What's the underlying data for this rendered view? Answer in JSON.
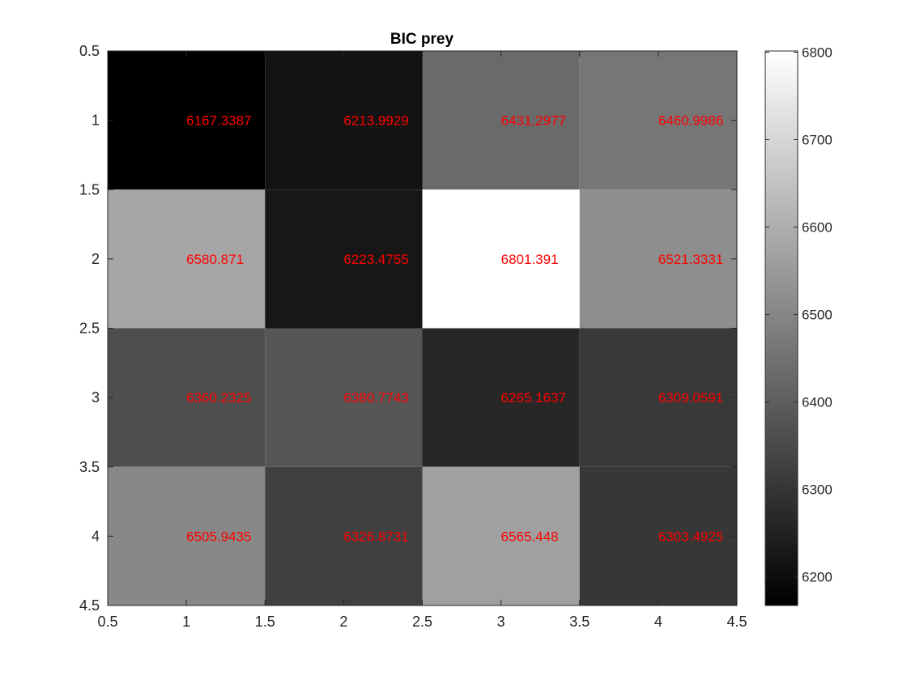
{
  "chart_data": {
    "type": "heatmap",
    "title": "BIC prey",
    "xlabel": "",
    "ylabel": "",
    "colormap": "gray",
    "clim": [
      6167.3387,
      6801.391
    ],
    "x_categories": [
      1,
      2,
      3,
      4
    ],
    "y_categories": [
      1,
      2,
      3,
      4
    ],
    "values": [
      [
        6167.3387,
        6213.9929,
        6431.2977,
        6460.9986
      ],
      [
        6580.871,
        6223.4755,
        6801.391,
        6521.3331
      ],
      [
        6360.2325,
        6380.7743,
        6265.1637,
        6309.0591
      ],
      [
        6505.9435,
        6326.8731,
        6565.448,
        6303.4925
      ]
    ],
    "value_labels": [
      [
        "6167.3387",
        "6213.9929",
        "6431.2977",
        "6460.9986"
      ],
      [
        "6580.871",
        "6223.4755",
        "6801.391",
        "6521.3331"
      ],
      [
        "6360.2325",
        "6380.7743",
        "6265.1637",
        "6309.0591"
      ],
      [
        "6505.9435",
        "6326.8731",
        "6565.448",
        "6303.4925"
      ]
    ],
    "xlim": [
      0.5,
      4.5
    ],
    "ylim": [
      0.5,
      4.5
    ],
    "y_reversed": true,
    "x_ticks": [
      0.5,
      1,
      1.5,
      2,
      2.5,
      3,
      3.5,
      4,
      4.5
    ],
    "x_tick_labels": [
      "0.5",
      "1",
      "1.5",
      "2",
      "2.5",
      "3",
      "3.5",
      "4",
      "4.5"
    ],
    "y_ticks": [
      0.5,
      1,
      1.5,
      2,
      2.5,
      3,
      3.5,
      4,
      4.5
    ],
    "y_tick_labels": [
      "0.5",
      "1",
      "1.5",
      "2",
      "2.5",
      "3",
      "3.5",
      "4",
      "4.5"
    ],
    "label_color": "#ff0000",
    "colorbar": {
      "ticks": [
        6200,
        6300,
        6400,
        6500,
        6600,
        6700,
        6800
      ],
      "tick_labels": [
        "6200",
        "6300",
        "6400",
        "6500",
        "6600",
        "6700",
        "6800"
      ],
      "placement": "right"
    },
    "grid": false
  }
}
